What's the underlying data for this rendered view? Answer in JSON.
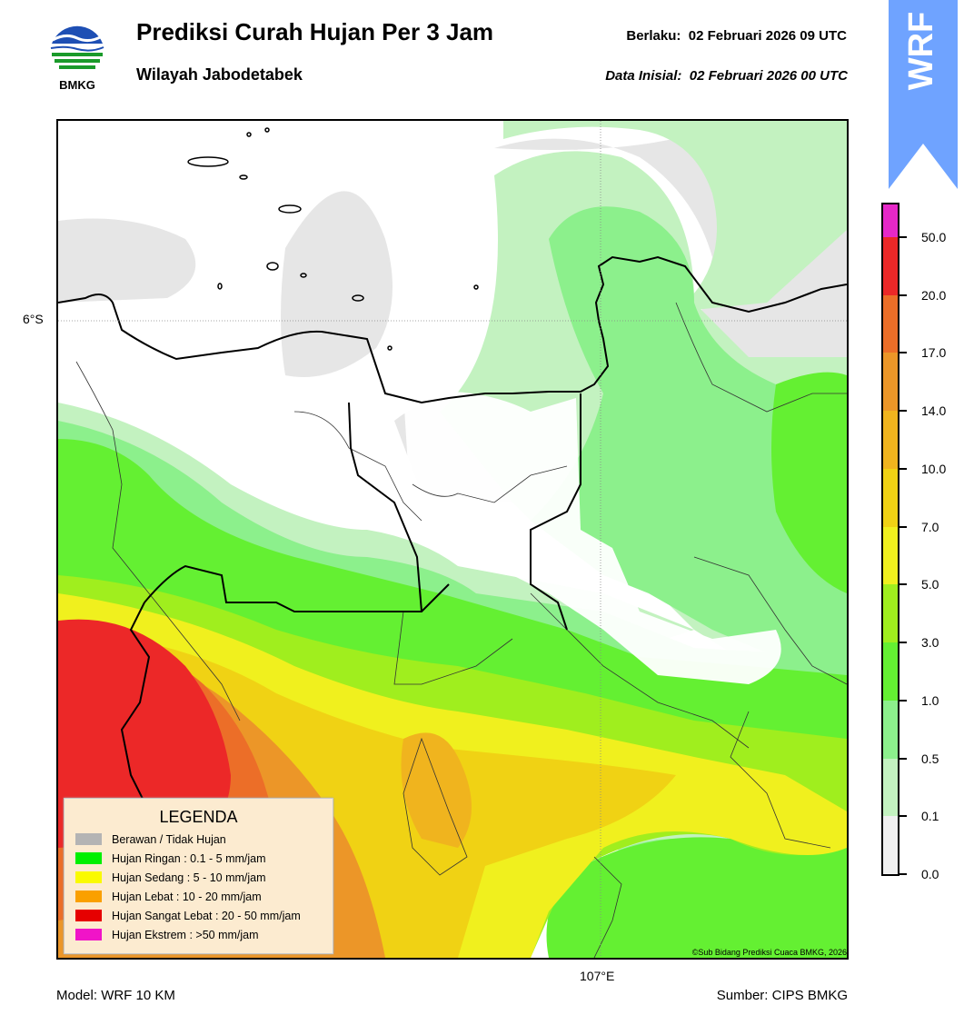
{
  "header": {
    "title": "Prediksi Curah Hujan Per 3 Jam",
    "subtitle": "Wilayah Jabodetabek",
    "valid_label": "Berlaku:",
    "valid_time": "02 Februari 2026 09 UTC",
    "init_label": "Data Inisial:",
    "init_time": "02 Februari 2026 00 UTC",
    "logo_text": "BMKG",
    "banner_text": "WRF"
  },
  "map": {
    "lat_label": "6°S",
    "lon_label": "107°E",
    "copyright": "©Sub Bidang Prediksi Cuaca BMKG, 2026"
  },
  "legend": {
    "title": "LEGENDA",
    "items": [
      {
        "label": "Berawan / Tidak Hujan",
        "color": "#b4b4b4"
      },
      {
        "label": "Hujan Ringan : 0.1 - 5 mm/jam",
        "color": "#00f000"
      },
      {
        "label": "Hujan Sedang : 5 - 10 mm/jam",
        "color": "#fafa00"
      },
      {
        "label": "Hujan Lebat : 10 - 20 mm/jam",
        "color": "#faa000"
      },
      {
        "label": "Hujan Sangat Lebat : 20 - 50 mm/jam",
        "color": "#e60000"
      },
      {
        "label": "Hujan Ekstrem : >50 mm/jam",
        "color": "#f014c8"
      }
    ]
  },
  "colorbar": {
    "ticks": [
      "0.0",
      "0.1",
      "0.5",
      "1.0",
      "3.0",
      "5.0",
      "7.0",
      "10.0",
      "14.0",
      "17.0",
      "20.0",
      "50.0"
    ],
    "colors": [
      "#f0f0f0",
      "#c3f2c0",
      "#8cf08c",
      "#64f032",
      "#a0ee1e",
      "#f0f01e",
      "#f0d214",
      "#f0b41e",
      "#ec9628",
      "#ec6e28",
      "#ec2828",
      "#e628c8"
    ]
  },
  "footer": {
    "model": "Model: WRF 10 KM",
    "source": "Sumber: CIPS BMKG"
  }
}
